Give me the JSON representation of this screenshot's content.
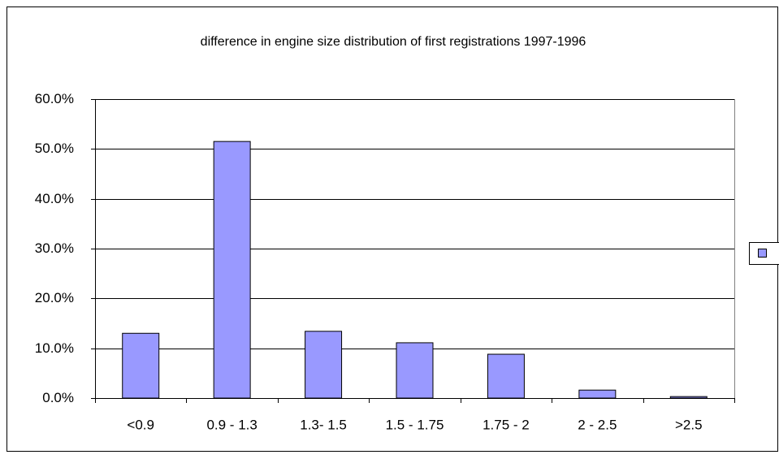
{
  "chart_data": {
    "type": "bar",
    "title": "difference in engine size distribution of first registrations 1997-1996",
    "categories": [
      "<0.9",
      "0.9 - 1.3",
      "1.3- 1.5",
      "1.5 - 1.75",
      "1.75 - 2",
      "2 - 2.5",
      ">2.5"
    ],
    "values": [
      13.0,
      51.5,
      13.4,
      11.1,
      8.8,
      1.6,
      0.3
    ],
    "color": "#9999ff",
    "ylim": [
      0,
      60
    ],
    "yticks": [
      {
        "value": 0,
        "label": "0.0%"
      },
      {
        "value": 10,
        "label": "10.0%"
      },
      {
        "value": 20,
        "label": "20.0%"
      },
      {
        "value": 30,
        "label": "30.0%"
      },
      {
        "value": 40,
        "label": "40.0%"
      },
      {
        "value": 50,
        "label": "50.0%"
      },
      {
        "value": 60,
        "label": "60.0%"
      }
    ],
    "grid": true
  }
}
